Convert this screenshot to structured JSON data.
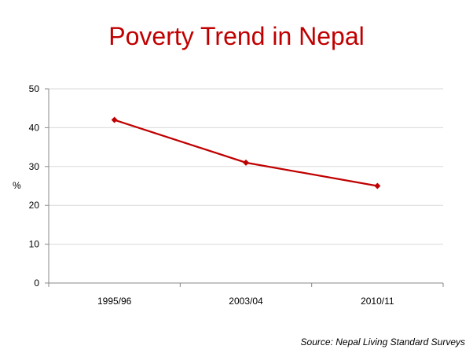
{
  "chart_data": {
    "type": "line",
    "title": "Poverty Trend in Nepal",
    "ylabel": "%",
    "xlabel": "",
    "categories": [
      "1995/96",
      "2003/04",
      "2010/11"
    ],
    "series": [
      {
        "values": [
          42,
          31,
          25
        ],
        "color": "#c00000"
      }
    ],
    "ylim": [
      0,
      50
    ],
    "yticks": [
      0,
      10,
      20,
      30,
      40,
      50
    ],
    "grid": true,
    "legend": "none"
  },
  "source": "Source: Nepal Living Standard Surveys",
  "colors": {
    "title": "#c00000",
    "line": "#c00000",
    "grid": "#d9d9d9",
    "axis": "#888888"
  }
}
